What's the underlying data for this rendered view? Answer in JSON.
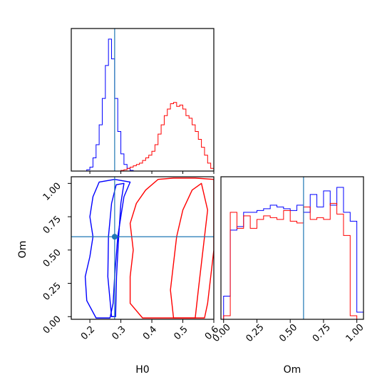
{
  "chart_data": {
    "type": "corner",
    "parameters": [
      "H0",
      "Om"
    ],
    "truth": {
      "H0": 0.28,
      "Om": 0.6
    },
    "colors": {
      "blue": "#0000ff",
      "red": "#ff0000",
      "truth": "#1f77b4"
    },
    "axes": {
      "H0": {
        "label": "H0",
        "range": [
          0.14,
          0.6
        ],
        "ticks": [
          "0.2",
          "0.3",
          "0.4",
          "0.5",
          "0.6"
        ]
      },
      "Om": {
        "label": "Om",
        "range": [
          -0.02,
          1.05
        ],
        "ticks": [
          "0.00",
          "0.25",
          "0.50",
          "0.75",
          "1.00"
        ]
      }
    },
    "hist_H0": {
      "bin_edges": [
        0.14,
        0.15,
        0.16,
        0.17,
        0.18,
        0.19,
        0.2,
        0.21,
        0.22,
        0.23,
        0.24,
        0.25,
        0.26,
        0.27,
        0.28,
        0.29,
        0.3,
        0.31,
        0.32,
        0.33,
        0.34,
        0.35,
        0.36,
        0.37,
        0.38,
        0.39,
        0.4,
        0.41,
        0.42,
        0.43,
        0.44,
        0.45,
        0.46,
        0.47,
        0.48,
        0.49,
        0.5,
        0.51,
        0.52,
        0.53,
        0.54,
        0.55,
        0.56,
        0.57,
        0.58,
        0.59,
        0.6
      ],
      "series": [
        {
          "color": "blue",
          "counts": [
            0,
            0,
            0,
            0,
            0,
            0.01,
            0.03,
            0.1,
            0.2,
            0.35,
            0.55,
            0.8,
            1.0,
            0.85,
            0.55,
            0.3,
            0.13,
            0.05,
            0.02,
            0.005,
            0,
            0,
            0,
            0,
            0,
            0,
            0,
            0,
            0,
            0,
            0,
            0,
            0,
            0,
            0,
            0,
            0,
            0,
            0,
            0,
            0,
            0,
            0,
            0,
            0,
            0
          ]
        },
        {
          "color": "red",
          "counts": [
            0,
            0,
            0,
            0,
            0,
            0,
            0,
            0,
            0,
            0,
            0,
            0,
            0,
            0,
            0,
            0,
            0.005,
            0.01,
            0.02,
            0.03,
            0.04,
            0.05,
            0.06,
            0.08,
            0.1,
            0.12,
            0.15,
            0.2,
            0.28,
            0.35,
            0.42,
            0.47,
            0.51,
            0.52,
            0.49,
            0.5,
            0.47,
            0.42,
            0.4,
            0.35,
            0.3,
            0.24,
            0.18,
            0.12,
            0.06,
            0.02
          ]
        }
      ]
    },
    "hist_Om": {
      "bin_edges": [
        0,
        0.05,
        0.1,
        0.15,
        0.2,
        0.25,
        0.3,
        0.35,
        0.4,
        0.45,
        0.5,
        0.55,
        0.6,
        0.65,
        0.7,
        0.75,
        0.8,
        0.85,
        0.9,
        0.95,
        1.0,
        1.05
      ],
      "series": [
        {
          "color": "blue",
          "counts": [
            0.13,
            0.5,
            0.52,
            0.6,
            0.6,
            0.61,
            0.62,
            0.64,
            0.63,
            0.62,
            0.61,
            0.64,
            0.6,
            0.7,
            0.63,
            0.72,
            0.64,
            0.74,
            0.6,
            0.55,
            0.04
          ]
        },
        {
          "color": "red",
          "counts": [
            0.02,
            0.6,
            0.51,
            0.58,
            0.51,
            0.56,
            0.58,
            0.57,
            0.56,
            0.61,
            0.55,
            0.54,
            0.63,
            0.56,
            0.57,
            0.56,
            0.65,
            0.59,
            0.47,
            0.02,
            0
          ]
        }
      ]
    },
    "contours": [
      {
        "color": "blue",
        "level": "outer",
        "points": [
          [
            0.22,
            -0.01
          ],
          [
            0.19,
            0.12
          ],
          [
            0.185,
            0.3
          ],
          [
            0.2,
            0.45
          ],
          [
            0.21,
            0.6
          ],
          [
            0.2,
            0.75
          ],
          [
            0.21,
            0.9
          ],
          [
            0.23,
            1.01
          ],
          [
            0.28,
            1.03
          ],
          [
            0.33,
            1.01
          ],
          [
            0.31,
            0.9
          ],
          [
            0.3,
            0.75
          ],
          [
            0.29,
            0.6
          ],
          [
            0.285,
            0.45
          ],
          [
            0.28,
            0.3
          ],
          [
            0.275,
            0.1
          ],
          [
            0.265,
            -0.01
          ]
        ]
      },
      {
        "color": "blue",
        "level": "inner",
        "points": [
          [
            0.27,
            0.0
          ],
          [
            0.258,
            0.3
          ],
          [
            0.26,
            0.6
          ],
          [
            0.27,
            0.85
          ],
          [
            0.285,
            0.99
          ],
          [
            0.31,
            1.0
          ],
          [
            0.3,
            0.85
          ],
          [
            0.293,
            0.6
          ],
          [
            0.286,
            0.3
          ],
          [
            0.283,
            0.0
          ]
        ]
      },
      {
        "color": "red",
        "level": "outer",
        "points": [
          [
            0.37,
            -0.01
          ],
          [
            0.33,
            0.1
          ],
          [
            0.33,
            0.3
          ],
          [
            0.34,
            0.5
          ],
          [
            0.33,
            0.7
          ],
          [
            0.35,
            0.85
          ],
          [
            0.38,
            0.95
          ],
          [
            0.42,
            1.03
          ],
          [
            0.47,
            1.04
          ],
          [
            0.54,
            1.04
          ],
          [
            0.6,
            1.03
          ],
          [
            0.6,
            0.8
          ],
          [
            0.6,
            0.5
          ],
          [
            0.59,
            0.3
          ],
          [
            0.58,
            0.1
          ],
          [
            0.57,
            -0.01
          ]
        ]
      },
      {
        "color": "red",
        "level": "inner",
        "points": [
          [
            0.47,
            -0.01
          ],
          [
            0.46,
            0.2
          ],
          [
            0.47,
            0.4
          ],
          [
            0.48,
            0.6
          ],
          [
            0.5,
            0.8
          ],
          [
            0.53,
            0.95
          ],
          [
            0.56,
            1.0
          ],
          [
            0.58,
            0.8
          ],
          [
            0.57,
            0.6
          ],
          [
            0.56,
            0.4
          ],
          [
            0.55,
            0.2
          ],
          [
            0.54,
            -0.01
          ]
        ]
      }
    ]
  }
}
